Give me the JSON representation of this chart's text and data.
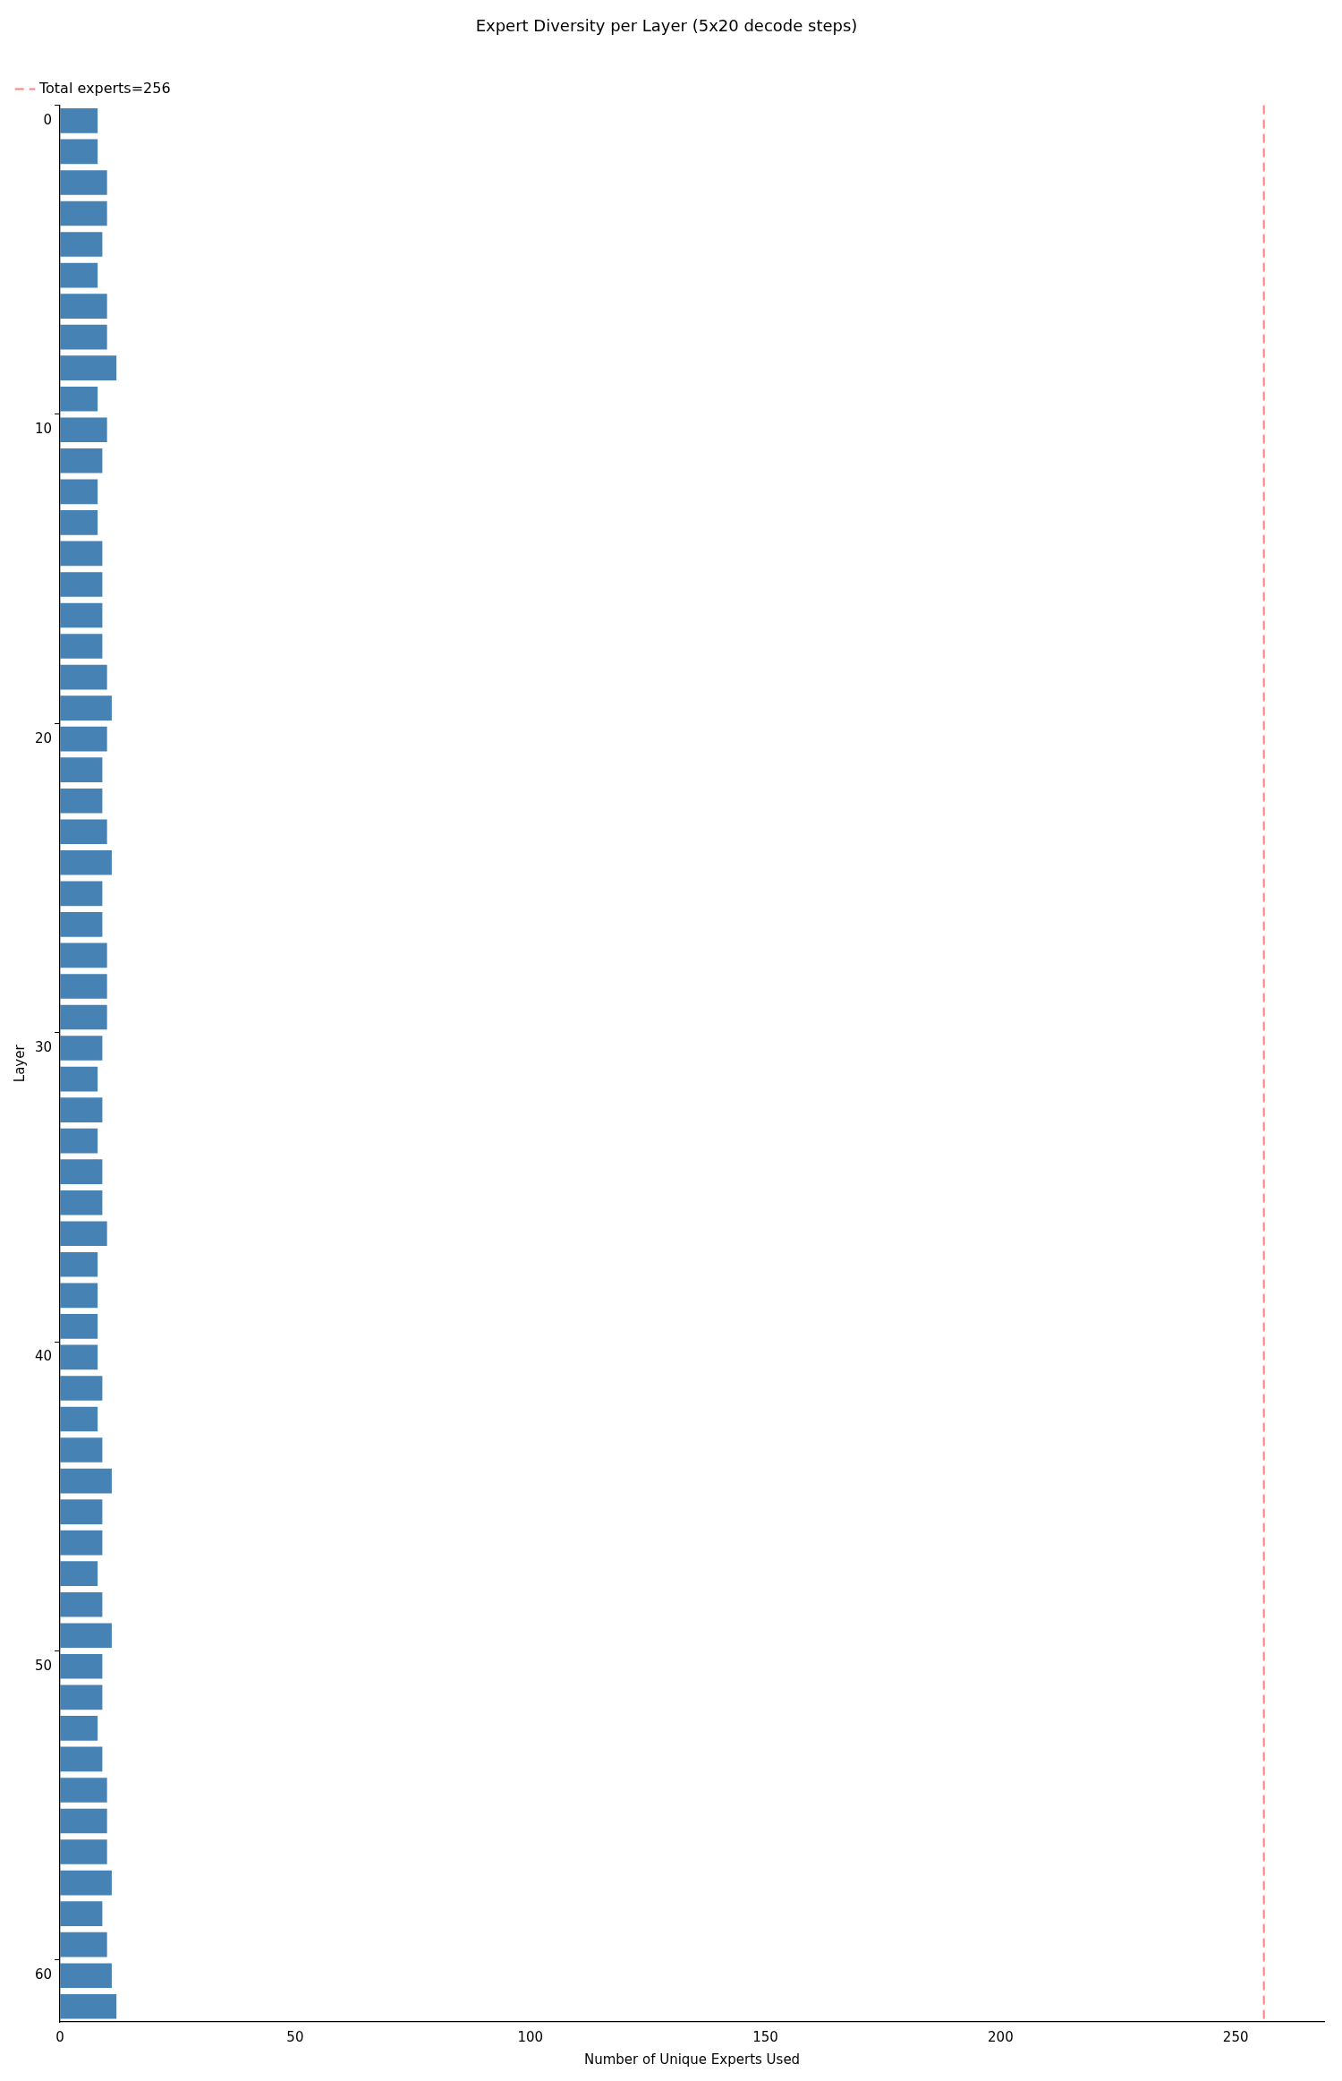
{
  "chart_data": {
    "type": "bar",
    "orientation": "horizontal",
    "title": "Expert Diversity per Layer (5x20 decode steps)",
    "xlabel": "Number of Unique Experts Used",
    "ylabel": "Layer",
    "categories": [
      "0",
      null,
      null,
      null,
      null,
      null,
      null,
      null,
      null,
      null,
      "10",
      null,
      null,
      null,
      null,
      null,
      null,
      null,
      null,
      null,
      "20",
      null,
      null,
      null,
      null,
      null,
      null,
      null,
      null,
      null,
      "30",
      null,
      null,
      null,
      null,
      null,
      null,
      null,
      null,
      null,
      "40",
      null,
      null,
      null,
      null,
      null,
      null,
      null,
      null,
      null,
      "50",
      null,
      null,
      null,
      null,
      null,
      null,
      null,
      null,
      null,
      "60",
      null
    ],
    "values": [
      8,
      8,
      10,
      10,
      9,
      8,
      10,
      10,
      12,
      8,
      10,
      9,
      8,
      8,
      9,
      9,
      9,
      9,
      10,
      11,
      10,
      9,
      9,
      10,
      11,
      9,
      9,
      10,
      10,
      10,
      9,
      8,
      9,
      8,
      9,
      9,
      10,
      8,
      8,
      8,
      8,
      9,
      8,
      9,
      11,
      9,
      9,
      8,
      9,
      11,
      9,
      9,
      8,
      9,
      10,
      10,
      10,
      11,
      9,
      10,
      11,
      12
    ],
    "color": "#4682b4",
    "xlim": [
      0,
      268.8
    ],
    "xticks": [
      0,
      50,
      100,
      150,
      200,
      250
    ],
    "ref_lines": [
      {
        "axis": "x",
        "value": 256,
        "label": "Total experts=256",
        "color": "#ff8080",
        "line_style": "dashed"
      }
    ],
    "legend": "top left",
    "grid": false
  }
}
